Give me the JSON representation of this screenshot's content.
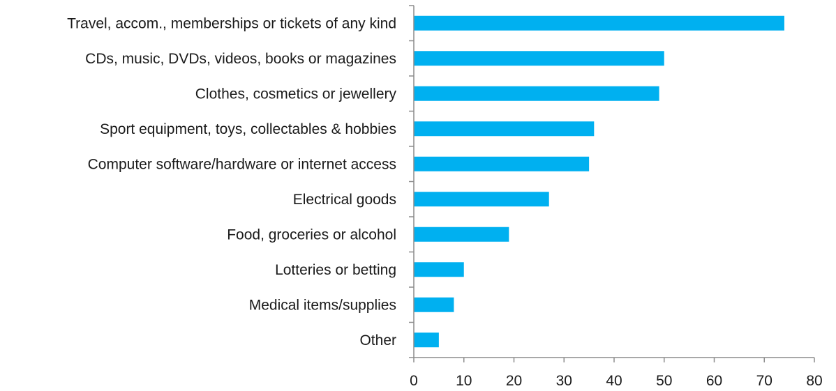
{
  "chart_data": {
    "type": "bar",
    "orientation": "horizontal",
    "title": "",
    "xlabel": "",
    "ylabel": "",
    "categories": [
      "Travel, accom., memberships or  tickets of any kind",
      "CDs, music, DVDs, videos, books or magazines",
      "Clothes, cosmetics or jewellery",
      "Sport equipment, toys, collectables & hobbies",
      "Computer software/hardware or internet access",
      "Electrical goods",
      "Food, groceries or alcohol",
      "Lotteries or betting",
      "Medical items/supplies",
      "Other"
    ],
    "values": [
      74,
      50,
      49,
      36,
      35,
      27,
      19,
      10,
      8,
      5
    ],
    "xlim": [
      0,
      80
    ],
    "xticks": [
      0,
      10,
      20,
      30,
      40,
      50,
      60,
      70,
      80
    ],
    "xtick_labels": [
      "0",
      "10",
      "20",
      "30",
      "40",
      "50",
      "60",
      "70",
      "80"
    ],
    "grid": false,
    "legend": "none",
    "bar_color": "#00B0F0",
    "axis_color": "#8C8C8C"
  }
}
